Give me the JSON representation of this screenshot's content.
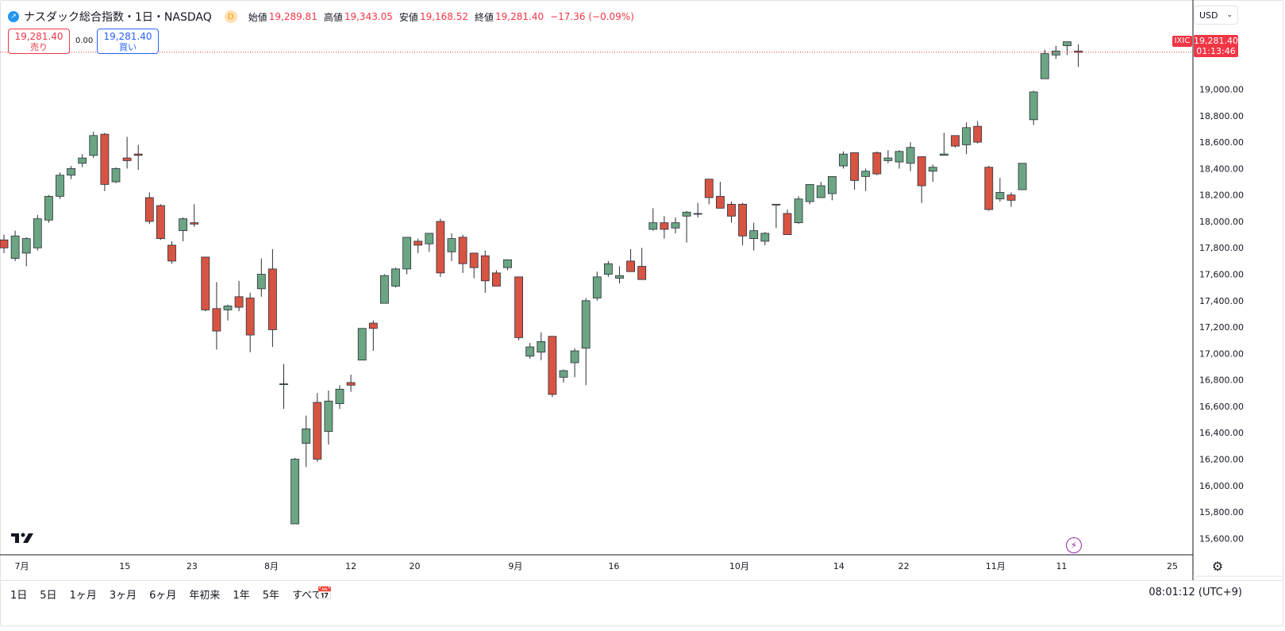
{
  "header": {
    "title": "ナスダック総合指数・1日・NASDAQ",
    "badge": "D",
    "open_label": "始値",
    "open": "19,289.81",
    "high_label": "高値",
    "high": "19,343.05",
    "low_label": "安値",
    "low": "19,168.52",
    "close_label": "終値",
    "close": "19,281.40",
    "change": "−17.36 (−0.09%)"
  },
  "trade": {
    "sell_price": "19,281.40",
    "sell_label": "売り",
    "buy_price": "19,281.40",
    "buy_label": "買い",
    "spread": "0.00"
  },
  "currency": {
    "label": "USD"
  },
  "price_tag": {
    "symbol": "IXIC",
    "price": "19,281.40",
    "countdown": "01:13:46"
  },
  "range_buttons": [
    "1日",
    "5日",
    "1ヶ月",
    "3ヶ月",
    "6ヶ月",
    "年初来",
    "1年",
    "5年",
    "すべて"
  ],
  "clock": "08:01:12 (UTC+9)",
  "colors": {
    "up": "#6ba583",
    "down": "#d75442",
    "accent": "#f23645",
    "wick": "#2a2e39"
  },
  "icons": [
    "chart-icon",
    "calendar-icon",
    "gear-icon",
    "bolt-icon",
    "tradingview-logo",
    "chevron-down-icon"
  ],
  "chart_data": {
    "type": "candlestick",
    "yticks": [
      "15,600.00",
      "15,800.00",
      "16,000.00",
      "16,200.00",
      "16,400.00",
      "16,600.00",
      "16,800.00",
      "17,000.00",
      "17,200.00",
      "17,400.00",
      "17,600.00",
      "17,800.00",
      "18,000.00",
      "18,200.00",
      "18,400.00",
      "18,600.00",
      "18,800.00",
      "19,000.00"
    ],
    "ylim": [
      15530,
      19460
    ],
    "xticks": [
      "7月",
      "15",
      "23",
      "8月",
      "12",
      "20",
      "9月",
      "16",
      "10月",
      "14",
      "22",
      "11月",
      "11",
      "25"
    ],
    "last_price": 19281.4,
    "candles": [
      [
        17860,
        17900,
        17760,
        17800
      ],
      [
        17720,
        17930,
        17700,
        17890
      ],
      [
        17760,
        17880,
        17660,
        17870
      ],
      [
        17800,
        18050,
        17780,
        18020
      ],
      [
        18010,
        18200,
        17990,
        18190
      ],
      [
        18190,
        18370,
        18170,
        18350
      ],
      [
        18350,
        18420,
        18320,
        18400
      ],
      [
        18440,
        18510,
        18410,
        18480
      ],
      [
        18500,
        18680,
        18480,
        18650
      ],
      [
        18660,
        18670,
        18230,
        18280
      ],
      [
        18300,
        18410,
        18290,
        18400
      ],
      [
        18480,
        18640,
        18400,
        18460
      ],
      [
        18510,
        18580,
        18390,
        18500
      ],
      [
        18180,
        18220,
        17980,
        18000
      ],
      [
        18120,
        18130,
        17860,
        17870
      ],
      [
        17820,
        17850,
        17680,
        17700
      ],
      [
        17930,
        18030,
        17850,
        18020
      ],
      [
        17990,
        18130,
        17960,
        17980
      ],
      [
        17730,
        17730,
        17320,
        17330
      ],
      [
        17340,
        17540,
        17030,
        17170
      ],
      [
        17330,
        17370,
        17250,
        17360
      ],
      [
        17430,
        17550,
        17320,
        17350
      ],
      [
        17420,
        17460,
        17010,
        17140
      ],
      [
        17490,
        17720,
        17430,
        17600
      ],
      [
        17640,
        17790,
        17050,
        17180
      ],
      [
        16770,
        16920,
        16580,
        16770
      ],
      [
        15710,
        16210,
        15710,
        16200
      ],
      [
        16320,
        16530,
        16140,
        16430
      ],
      [
        16630,
        16700,
        16180,
        16200
      ],
      [
        16410,
        16720,
        16310,
        16640
      ],
      [
        16620,
        16760,
        16580,
        16730
      ],
      [
        16780,
        16840,
        16710,
        16760
      ],
      [
        16950,
        17190,
        16950,
        17190
      ],
      [
        17230,
        17250,
        17020,
        17190
      ],
      [
        17380,
        17600,
        17380,
        17590
      ],
      [
        17510,
        17650,
        17500,
        17640
      ],
      [
        17640,
        17880,
        17600,
        17880
      ],
      [
        17850,
        17870,
        17760,
        17820
      ],
      [
        17830,
        17900,
        17770,
        17910
      ],
      [
        18000,
        18020,
        17580,
        17610
      ],
      [
        17770,
        17910,
        17700,
        17870
      ],
      [
        17880,
        17900,
        17610,
        17680
      ],
      [
        17760,
        17760,
        17570,
        17650
      ],
      [
        17740,
        17780,
        17460,
        17550
      ],
      [
        17610,
        17630,
        17510,
        17510
      ],
      [
        17650,
        17710,
        17630,
        17710
      ],
      [
        17580,
        17580,
        17100,
        17120
      ],
      [
        16980,
        17080,
        16960,
        17050
      ],
      [
        17010,
        17160,
        16950,
        17090
      ],
      [
        17130,
        17130,
        16670,
        16690
      ],
      [
        16820,
        16880,
        16780,
        16870
      ],
      [
        16930,
        17040,
        16820,
        17020
      ],
      [
        17040,
        17420,
        16760,
        17400
      ],
      [
        17420,
        17620,
        17400,
        17580
      ],
      [
        17600,
        17700,
        17580,
        17680
      ],
      [
        17570,
        17660,
        17530,
        17590
      ],
      [
        17700,
        17790,
        17620,
        17620
      ],
      [
        17660,
        17800,
        17560,
        17560
      ],
      [
        17940,
        18100,
        17930,
        17990
      ],
      [
        17990,
        18040,
        17870,
        17940
      ],
      [
        17950,
        18030,
        17910,
        17990
      ],
      [
        18040,
        18080,
        17840,
        18070
      ],
      [
        18060,
        18140,
        18030,
        18060
      ],
      [
        18320,
        18320,
        18130,
        18180
      ],
      [
        18190,
        18300,
        18100,
        18100
      ],
      [
        18130,
        18150,
        17990,
        18040
      ],
      [
        18130,
        18140,
        17820,
        17890
      ],
      [
        17870,
        17990,
        17780,
        17930
      ],
      [
        17850,
        17920,
        17820,
        17910
      ],
      [
        18130,
        18130,
        17950,
        18130
      ],
      [
        18060,
        18090,
        17900,
        17900
      ],
      [
        17990,
        18190,
        17980,
        18170
      ],
      [
        18150,
        18280,
        18130,
        18280
      ],
      [
        18180,
        18300,
        18180,
        18270
      ],
      [
        18210,
        18330,
        18160,
        18340
      ],
      [
        18420,
        18530,
        18400,
        18510
      ],
      [
        18520,
        18520,
        18240,
        18310
      ],
      [
        18340,
        18400,
        18230,
        18380
      ],
      [
        18520,
        18530,
        18350,
        18360
      ],
      [
        18460,
        18540,
        18440,
        18480
      ],
      [
        18450,
        18540,
        18400,
        18530
      ],
      [
        18440,
        18600,
        18380,
        18560
      ],
      [
        18490,
        18490,
        18140,
        18270
      ],
      [
        18380,
        18430,
        18300,
        18410
      ],
      [
        18500,
        18670,
        18500,
        18510
      ],
      [
        18650,
        18650,
        18560,
        18570
      ],
      [
        18580,
        18750,
        18510,
        18710
      ],
      [
        18720,
        18760,
        18590,
        18600
      ],
      [
        18410,
        18420,
        18080,
        18090
      ],
      [
        18170,
        18330,
        18150,
        18220
      ],
      [
        18200,
        18220,
        18110,
        18160
      ],
      [
        18240,
        18440,
        18240,
        18440
      ],
      [
        18770,
        18990,
        18730,
        18980
      ],
      [
        19080,
        19300,
        19080,
        19270
      ],
      [
        19260,
        19330,
        19230,
        19290
      ],
      [
        19330,
        19360,
        19260,
        19360
      ],
      [
        19290,
        19340,
        19170,
        19280
      ]
    ]
  }
}
